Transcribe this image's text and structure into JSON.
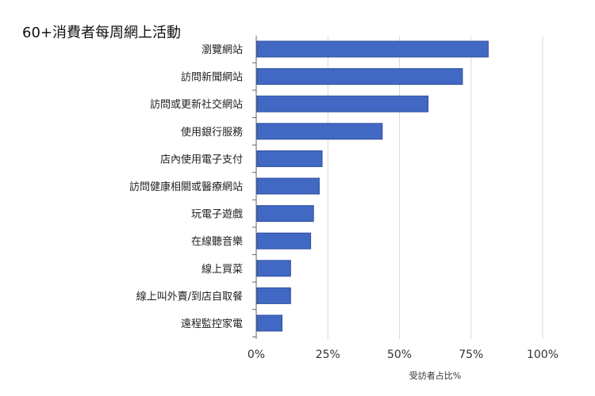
{
  "chart_data": {
    "type": "bar",
    "orientation": "horizontal",
    "title": "60+消費者每周網上活動",
    "xlabel": "受訪者占比%",
    "ylabel": "",
    "categories": [
      "瀏覽網站",
      "訪問新聞網站",
      "訪問或更新社交網站",
      "使用銀行服務",
      "店內使用電子支付",
      "訪問健康相關或醫療網站",
      "玩電子遊戲",
      "在線聽音樂",
      "線上買菜",
      "線上叫外賣/到店自取餐",
      "遠程監控家電"
    ],
    "values": [
      81,
      72,
      60,
      44,
      23,
      22,
      20,
      19,
      12,
      12,
      9
    ],
    "xlim": [
      0,
      100
    ],
    "xticks": [
      "0%",
      "25%",
      "50%",
      "75%",
      "100%"
    ],
    "grid": true,
    "legend": "none",
    "bar_color": "#4169C4",
    "bar_edge_color": "#2E4F9C"
  }
}
